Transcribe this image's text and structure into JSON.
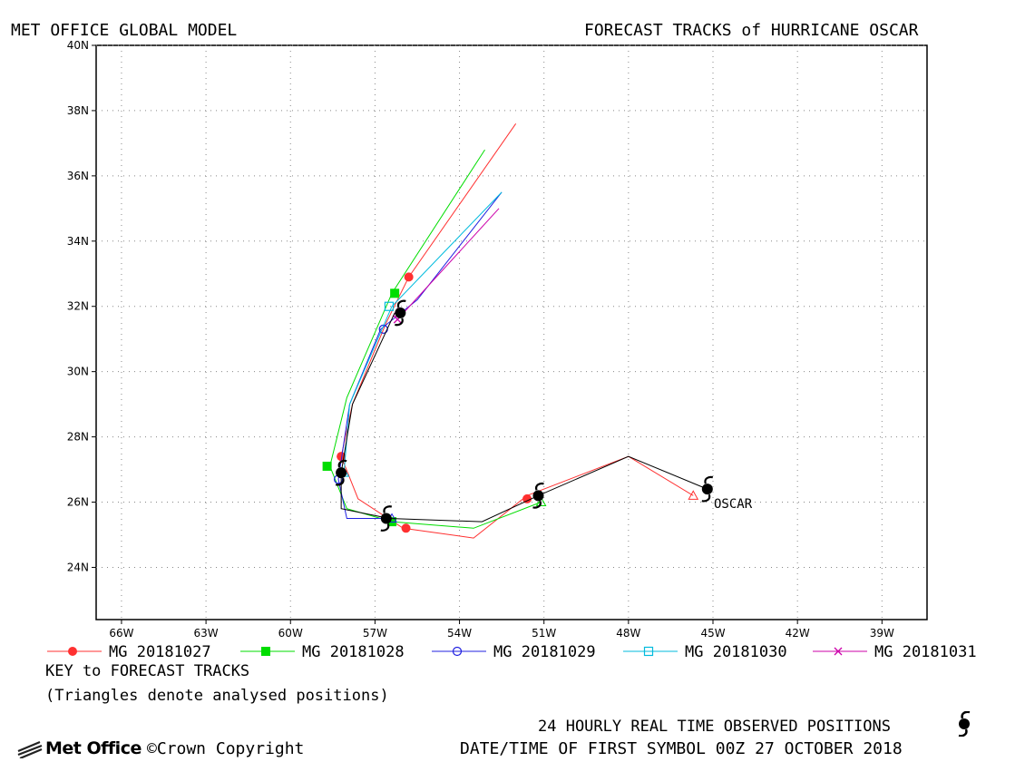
{
  "header": {
    "left_title": "MET OFFICE GLOBAL MODEL",
    "right_title": "FORECAST TRACKS of HURRICANE OSCAR"
  },
  "legend": {
    "items": [
      {
        "label": "MG 20181027",
        "color": "#ff3030",
        "marker": "filled-circle"
      },
      {
        "label": "MG 20181028",
        "color": "#00dd00",
        "marker": "filled-square"
      },
      {
        "label": "MG 20181029",
        "color": "#2020e0",
        "marker": "open-circle"
      },
      {
        "label": "MG 20181030",
        "color": "#00bbdd",
        "marker": "open-square"
      },
      {
        "label": "MG 20181031",
        "color": "#cc00aa",
        "marker": "cross"
      }
    ],
    "key_title": "KEY to FORECAST TRACKS",
    "key_note": "(Triangles denote analysed positions)"
  },
  "footer": {
    "observed_label": "24 HOURLY REAL TIME OBSERVED POSITIONS",
    "first_symbol": "DATE/TIME OF FIRST SYMBOL 00Z 27 OCTOBER 2018",
    "brand": "Met Office",
    "copyright": "©Crown Copyright"
  },
  "map": {
    "storm_label": "OSCAR",
    "x_tick_labels": [
      "66W",
      "63W",
      "60W",
      "57W",
      "54W",
      "51W",
      "48W",
      "45W",
      "42W",
      "39W"
    ],
    "x_tick_values": [
      -66,
      -63,
      -60,
      -57,
      -54,
      -51,
      -48,
      -45,
      -42,
      -39
    ],
    "y_tick_labels": [
      "24N",
      "26N",
      "28N",
      "30N",
      "32N",
      "34N",
      "36N",
      "38N",
      "40N"
    ],
    "y_tick_values": [
      24,
      26,
      28,
      30,
      32,
      34,
      36,
      38,
      40
    ],
    "lon_range": [
      -66.9,
      -37.4
    ],
    "lat_range": [
      22.4,
      40.0
    ],
    "grid": true
  },
  "chart_data": {
    "type": "line",
    "observed_track": {
      "name": "OSCAR",
      "color": "#000000",
      "lon": [
        -45.2,
        -48.0,
        -51.2,
        -53.2,
        -56.5,
        -58.2,
        -58.2,
        -57.8,
        -56.3
      ],
      "lat": [
        26.4,
        27.4,
        26.2,
        25.4,
        25.5,
        25.8,
        26.9,
        29.0,
        31.8
      ],
      "hurricane_symbols": [
        [
          -45.2,
          26.4
        ],
        [
          -51.2,
          26.2
        ],
        [
          -56.6,
          25.5
        ],
        [
          -58.2,
          26.9
        ],
        [
          -56.1,
          31.8
        ]
      ]
    },
    "series": [
      {
        "name": "MG 20181027",
        "color": "#ff3030",
        "lon": [
          -45.7,
          -48.0,
          -51.6,
          -53.5,
          -56.0,
          -57.6,
          -58.2,
          -57.8,
          -56.6,
          -55.8,
          -52.0
        ],
        "lat": [
          26.2,
          27.4,
          26.2,
          24.9,
          25.2,
          26.1,
          27.4,
          29.0,
          31.5,
          32.9,
          37.6
        ],
        "markers": [
          [
            -51.6,
            26.1
          ],
          [
            -55.9,
            25.2
          ],
          [
            -58.2,
            27.4
          ],
          [
            -55.8,
            32.9
          ]
        ],
        "analysed": [
          [
            -45.7,
            26.2
          ]
        ]
      },
      {
        "name": "MG 20181028",
        "color": "#00dd00",
        "lon": [
          -51.1,
          -53.5,
          -56.4,
          -58.0,
          -58.6,
          -58.0,
          -56.4,
          -53.1
        ],
        "lat": [
          26.0,
          25.2,
          25.4,
          25.8,
          27.1,
          29.2,
          32.4,
          36.8
        ],
        "markers": [
          [
            -56.4,
            25.4
          ],
          [
            -58.7,
            27.1
          ],
          [
            -56.3,
            32.4
          ]
        ],
        "analysed": [
          [
            -51.1,
            26.0
          ]
        ]
      },
      {
        "name": "MG 20181029",
        "color": "#2020e0",
        "lon": [
          -56.4,
          -58.0,
          -58.3,
          -57.9,
          -56.8,
          -55.5,
          -52.5
        ],
        "lat": [
          25.5,
          25.5,
          26.7,
          29.0,
          31.3,
          32.2,
          35.5
        ],
        "markers": [
          [
            -58.3,
            26.7
          ],
          [
            -56.7,
            31.3
          ]
        ],
        "analysed": [
          [
            -56.4,
            25.5
          ]
        ]
      },
      {
        "name": "MG 20181030",
        "color": "#00bbdd",
        "lon": [
          -58.1,
          -57.9,
          -56.4,
          -52.5
        ],
        "lat": [
          26.9,
          29.0,
          32.0,
          35.5
        ],
        "markers": [
          [
            -56.5,
            32.0
          ]
        ],
        "analysed": [
          [
            -58.1,
            26.9
          ]
        ]
      },
      {
        "name": "MG 20181031",
        "color": "#cc00aa",
        "lon": [
          -56.2,
          -52.6
        ],
        "lat": [
          31.6,
          35.0
        ],
        "markers": [
          [
            -56.2,
            31.6
          ]
        ],
        "analysed": [
          [
            -56.2,
            31.8
          ]
        ]
      }
    ]
  }
}
